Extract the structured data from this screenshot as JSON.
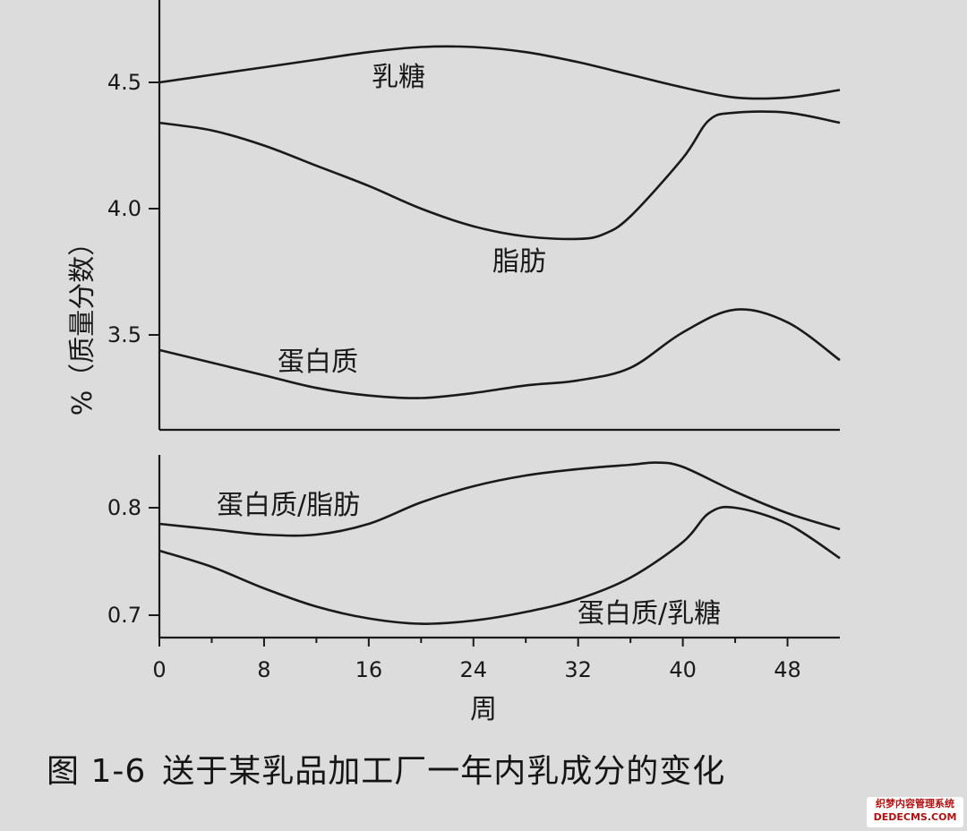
{
  "chart_data": [
    {
      "type": "line",
      "ylabel": "%（质量分数）",
      "yticks": [
        3.5,
        4.0,
        4.5
      ],
      "xlim": [
        0,
        52
      ],
      "ylim": [
        3.15,
        4.65
      ],
      "series": [
        {
          "name": "乳糖",
          "x": [
            0,
            4,
            8,
            12,
            16,
            20,
            24,
            28,
            32,
            36,
            40,
            44,
            48,
            52
          ],
          "y": [
            4.5,
            4.53,
            4.56,
            4.59,
            4.62,
            4.64,
            4.64,
            4.62,
            4.58,
            4.53,
            4.48,
            4.44,
            4.44,
            4.47
          ]
        },
        {
          "name": "脂肪",
          "x": [
            0,
            4,
            8,
            12,
            16,
            20,
            24,
            28,
            32,
            34,
            36,
            40,
            42,
            44,
            48,
            52
          ],
          "y": [
            4.34,
            4.31,
            4.25,
            4.17,
            4.09,
            4.0,
            3.93,
            3.89,
            3.88,
            3.9,
            3.97,
            4.2,
            4.35,
            4.38,
            4.38,
            4.34
          ]
        },
        {
          "name": "蛋白质",
          "x": [
            0,
            4,
            8,
            12,
            16,
            20,
            24,
            28,
            32,
            36,
            40,
            44,
            48,
            52
          ],
          "y": [
            3.44,
            3.39,
            3.34,
            3.29,
            3.26,
            3.25,
            3.27,
            3.3,
            3.32,
            3.37,
            3.51,
            3.6,
            3.55,
            3.4
          ]
        }
      ]
    },
    {
      "type": "line",
      "xlabel": "周",
      "xticks": [
        0,
        8,
        16,
        24,
        32,
        40,
        48
      ],
      "yticks": [
        0.7,
        0.8
      ],
      "xlim": [
        0,
        52
      ],
      "ylim": [
        0.68,
        0.85
      ],
      "series": [
        {
          "name": "蛋白质/脂肪",
          "x": [
            0,
            4,
            8,
            12,
            16,
            20,
            24,
            28,
            32,
            36,
            38,
            40,
            44,
            48,
            52
          ],
          "y": [
            0.785,
            0.78,
            0.775,
            0.775,
            0.785,
            0.805,
            0.82,
            0.83,
            0.836,
            0.84,
            0.842,
            0.838,
            0.815,
            0.795,
            0.78
          ]
        },
        {
          "name": "蛋白质/乳糖",
          "x": [
            0,
            4,
            8,
            12,
            16,
            20,
            24,
            28,
            32,
            36,
            40,
            42,
            44,
            48,
            52
          ],
          "y": [
            0.76,
            0.745,
            0.725,
            0.708,
            0.697,
            0.692,
            0.695,
            0.703,
            0.715,
            0.735,
            0.768,
            0.795,
            0.8,
            0.785,
            0.753
          ]
        }
      ]
    }
  ],
  "caption": {
    "figure_no": "图 1-6",
    "title": "送于某乳品加工厂一年内乳成分的变化"
  },
  "watermark": {
    "line1": "织梦内容管理系统",
    "line2": "DEDECMS.COM"
  }
}
